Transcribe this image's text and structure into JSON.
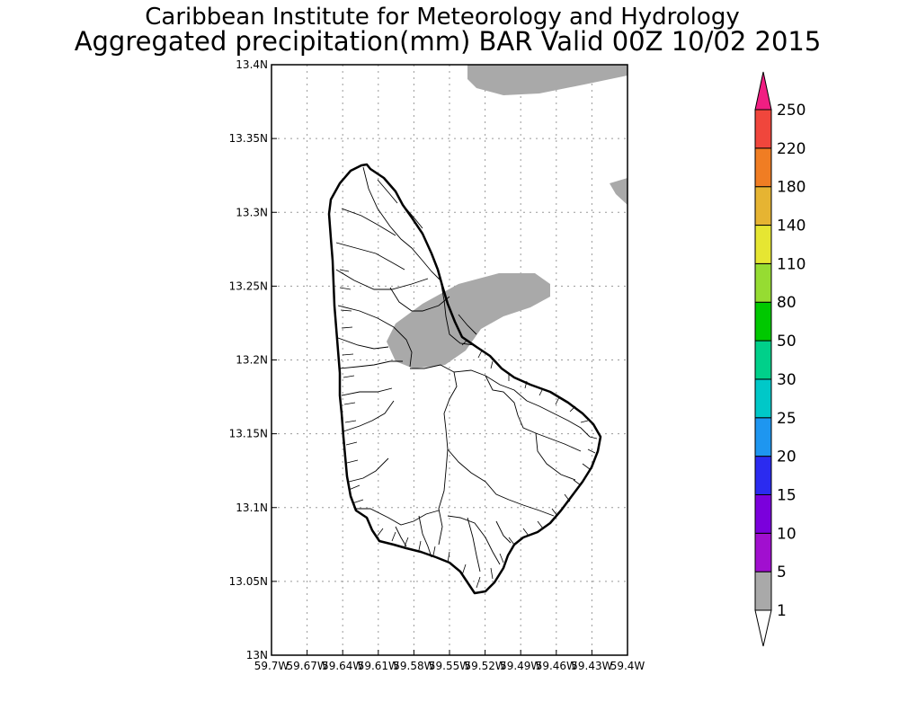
{
  "titles": {
    "line1": "Caribbean Institute for Meteorology and Hydrology",
    "line2": "Aggregated precipitation(mm) BAR Valid 00Z 10/02 2015"
  },
  "map": {
    "lon_range": [
      -59.7,
      -59.4
    ],
    "lat_range": [
      13.0,
      13.4
    ],
    "grid": true,
    "x_tick_labels": [
      "59.7W",
      "59.67W",
      "59.64W",
      "59.61W",
      "59.58W",
      "59.55W",
      "59.52W",
      "59.49W",
      "59.46W",
      "59.43W",
      "59.4W"
    ],
    "y_tick_labels": [
      "13N",
      "13.05N",
      "13.1N",
      "13.15N",
      "13.2N",
      "13.25N",
      "13.3N",
      "13.35N",
      "13.4N"
    ],
    "precip_areas_mm": "1-5"
  },
  "colorbar": {
    "labels": [
      "1",
      "5",
      "10",
      "15",
      "20",
      "25",
      "30",
      "50",
      "80",
      "110",
      "140",
      "180",
      "220",
      "250"
    ],
    "colors": [
      "#a9a9a9",
      "#a10fcf",
      "#7b00dc",
      "#2b2bf0",
      "#1e96f0",
      "#00c8c8",
      "#00d08a",
      "#00c800",
      "#96dc32",
      "#e6e632",
      "#e6b432",
      "#f07d23",
      "#f0463c",
      "#f01e82"
    ],
    "under_color": "#ffffff",
    "over_color": "#f01e82"
  }
}
